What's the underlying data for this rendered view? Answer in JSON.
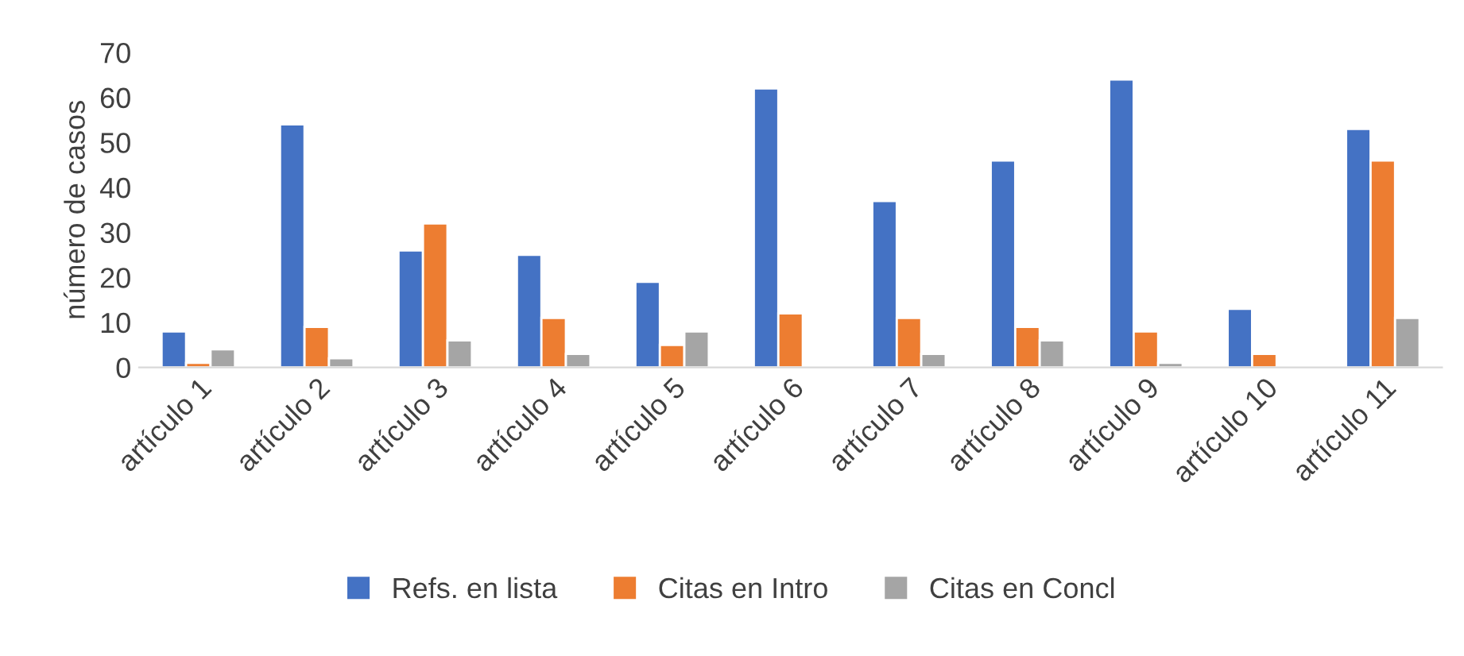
{
  "chart_data": {
    "type": "bar",
    "ylabel": "número de casos",
    "categories": [
      "artículo 1",
      "artículo 2",
      "artículo 3",
      "artículo 4",
      "artículo 5",
      "artículo 6",
      "artículo 7",
      "artículo 8",
      "artículo 9",
      "artículo 10",
      "artículo 11"
    ],
    "series": [
      {
        "name": "Refs. en lista",
        "color": "#4472c4",
        "values": [
          8,
          54,
          26,
          25,
          19,
          62,
          37,
          46,
          64,
          13,
          53
        ]
      },
      {
        "name": "Citas en Intro",
        "color": "#ed7d31",
        "values": [
          1,
          9,
          32,
          11,
          5,
          12,
          11,
          9,
          8,
          3,
          46
        ]
      },
      {
        "name": "Citas en Concl",
        "color": "#a5a5a5",
        "values": [
          4,
          2,
          6,
          3,
          8,
          null,
          3,
          6,
          1,
          null,
          11
        ]
      }
    ],
    "ylim": [
      0,
      70
    ],
    "yticks": [
      0,
      10,
      20,
      30,
      40,
      50,
      60,
      70
    ],
    "grid": false,
    "legend": "bottom"
  }
}
